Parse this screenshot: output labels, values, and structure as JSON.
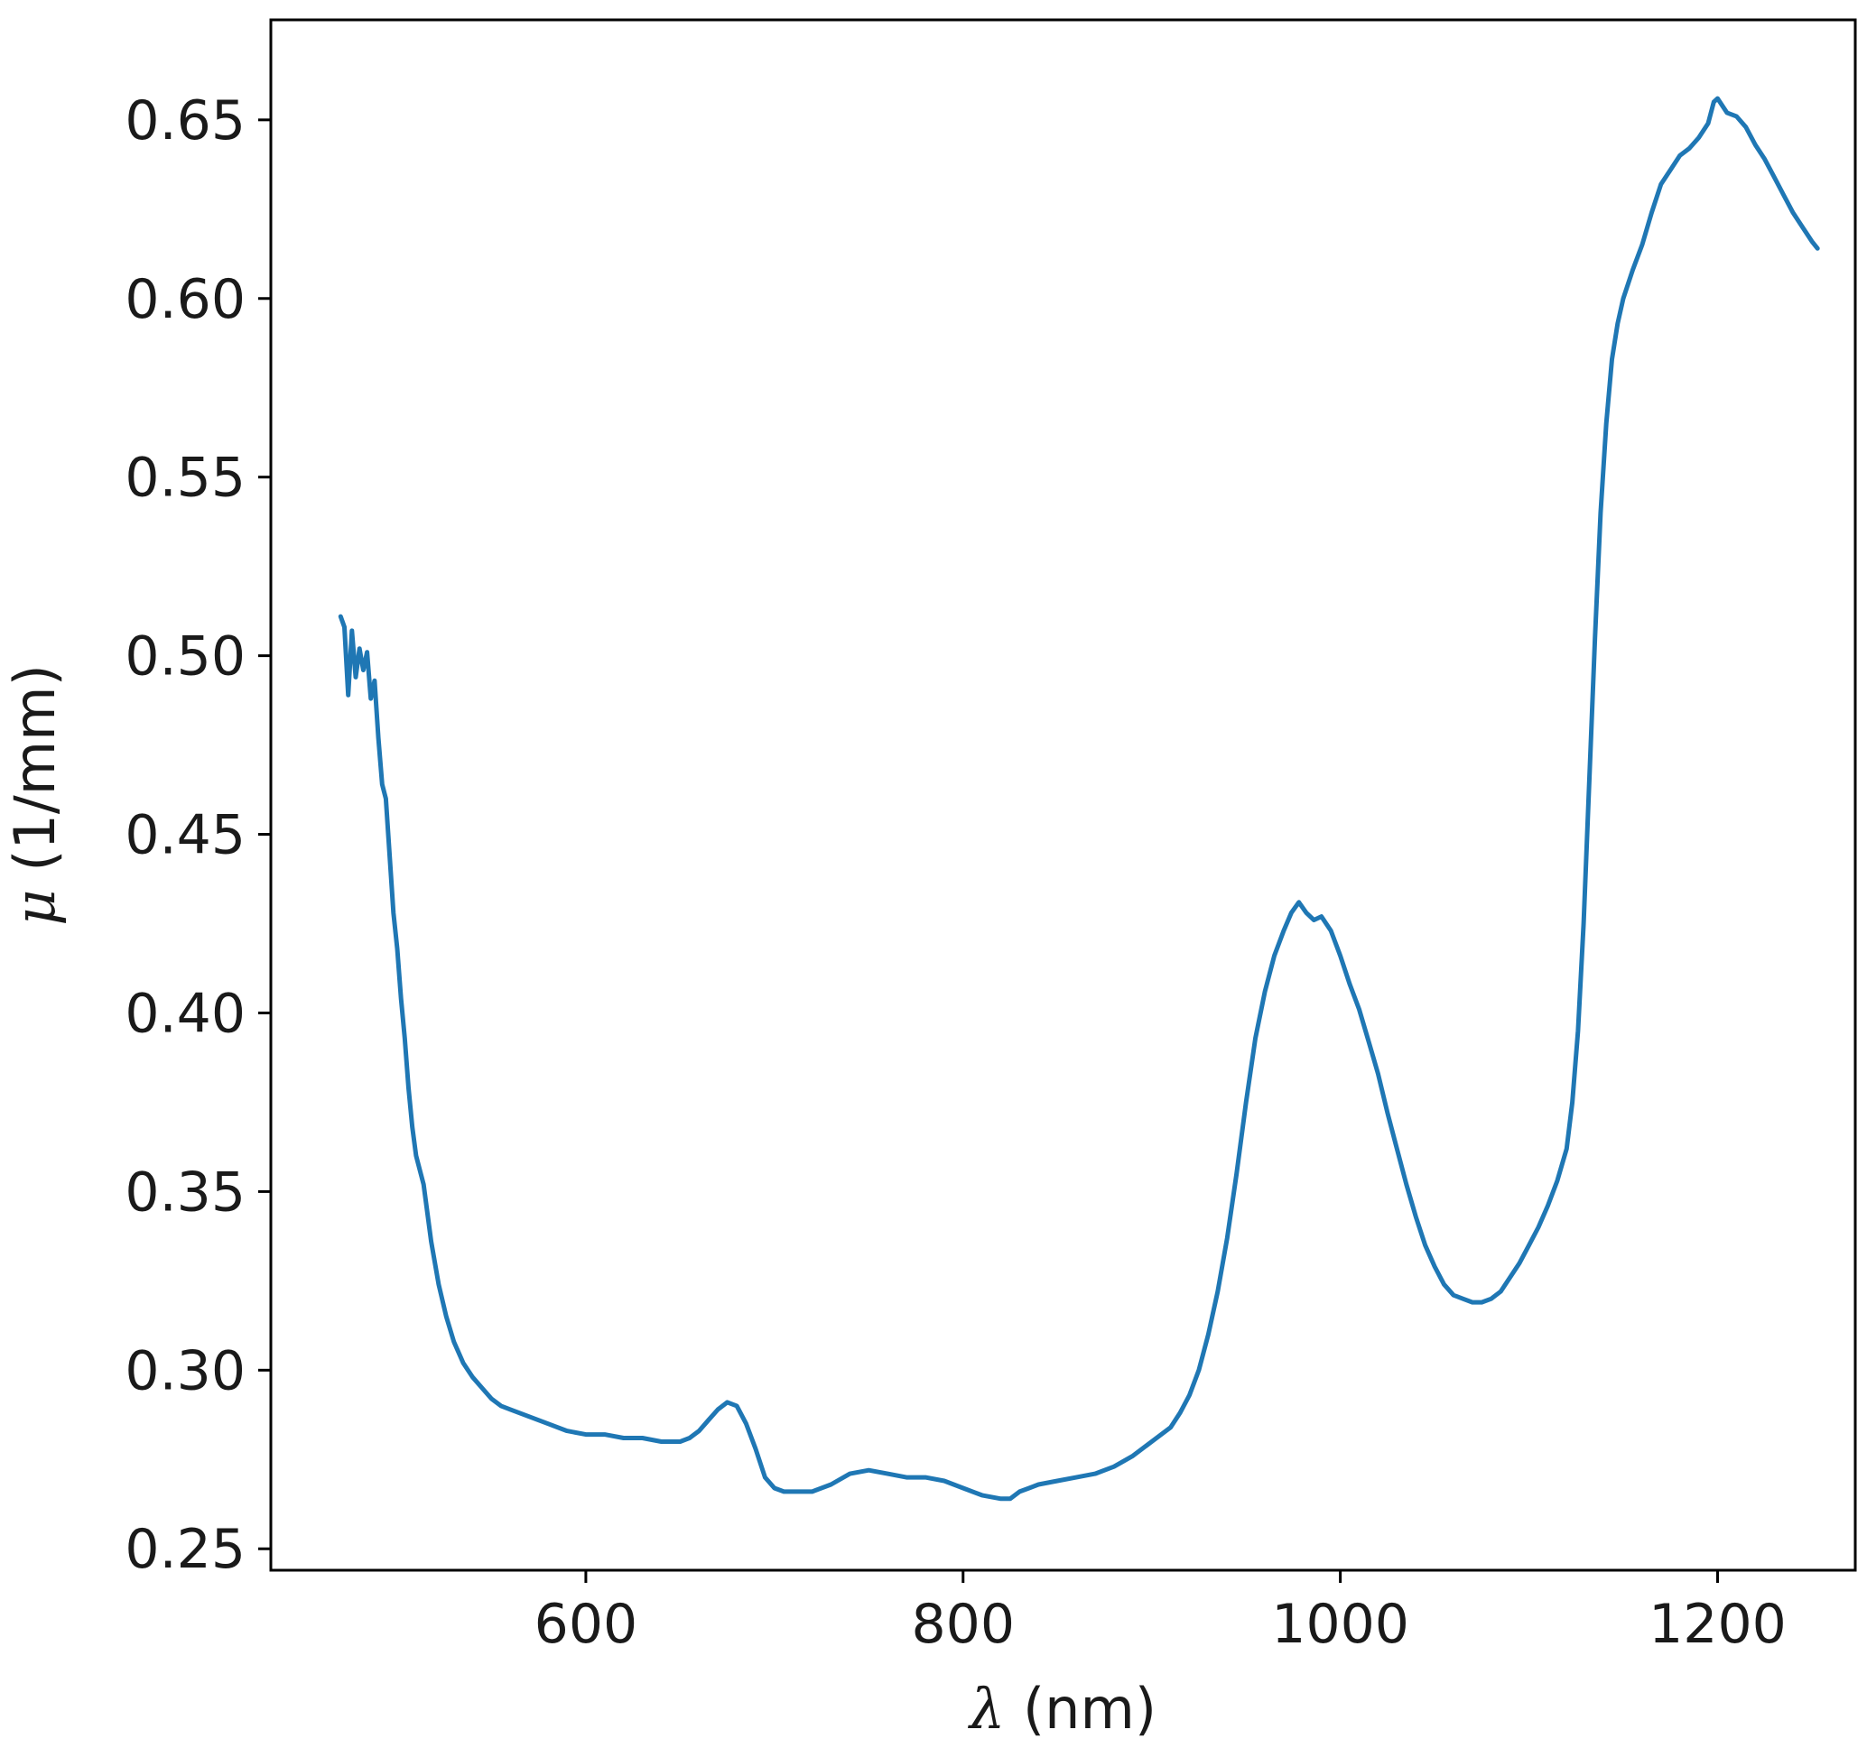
{
  "chart_data": {
    "type": "line",
    "title": "",
    "xlabel": {
      "symbol": "λ",
      "unit": " (nm)"
    },
    "ylabel": {
      "symbol": "μ",
      "unit": " (1/mm)"
    },
    "xlim": [
      433,
      1273
    ],
    "ylim": [
      0.244,
      0.678
    ],
    "xticks": [
      600,
      800,
      1000,
      1200
    ],
    "xtick_labels": [
      "600",
      "800",
      "1000",
      "1200"
    ],
    "yticks": [
      0.25,
      0.3,
      0.35,
      0.4,
      0.45,
      0.5,
      0.55,
      0.6,
      0.65
    ],
    "ytick_labels": [
      "0.25",
      "0.30",
      "0.35",
      "0.40",
      "0.45",
      "0.50",
      "0.55",
      "0.60",
      "0.65"
    ],
    "grid": false,
    "legend": "none",
    "series": [
      {
        "color": "#1f77b4",
        "points": [
          [
            470,
            0.511
          ],
          [
            472,
            0.508
          ],
          [
            474,
            0.489
          ],
          [
            476,
            0.507
          ],
          [
            478,
            0.494
          ],
          [
            480,
            0.502
          ],
          [
            482,
            0.496
          ],
          [
            484,
            0.501
          ],
          [
            486,
            0.488
          ],
          [
            488,
            0.493
          ],
          [
            490,
            0.477
          ],
          [
            492,
            0.464
          ],
          [
            494,
            0.46
          ],
          [
            496,
            0.444
          ],
          [
            498,
            0.428
          ],
          [
            500,
            0.418
          ],
          [
            502,
            0.404
          ],
          [
            504,
            0.393
          ],
          [
            506,
            0.379
          ],
          [
            508,
            0.368
          ],
          [
            510,
            0.36
          ],
          [
            514,
            0.352
          ],
          [
            518,
            0.336
          ],
          [
            522,
            0.324
          ],
          [
            526,
            0.315
          ],
          [
            530,
            0.308
          ],
          [
            535,
            0.302
          ],
          [
            540,
            0.298
          ],
          [
            545,
            0.295
          ],
          [
            550,
            0.292
          ],
          [
            555,
            0.29
          ],
          [
            560,
            0.289
          ],
          [
            570,
            0.287
          ],
          [
            580,
            0.285
          ],
          [
            590,
            0.283
          ],
          [
            600,
            0.282
          ],
          [
            610,
            0.282
          ],
          [
            620,
            0.281
          ],
          [
            630,
            0.281
          ],
          [
            640,
            0.28
          ],
          [
            650,
            0.28
          ],
          [
            655,
            0.281
          ],
          [
            660,
            0.283
          ],
          [
            665,
            0.286
          ],
          [
            670,
            0.289
          ],
          [
            675,
            0.291
          ],
          [
            680,
            0.29
          ],
          [
            685,
            0.285
          ],
          [
            690,
            0.278
          ],
          [
            695,
            0.27
          ],
          [
            700,
            0.267
          ],
          [
            705,
            0.266
          ],
          [
            710,
            0.266
          ],
          [
            720,
            0.266
          ],
          [
            730,
            0.268
          ],
          [
            740,
            0.271
          ],
          [
            750,
            0.272
          ],
          [
            760,
            0.271
          ],
          [
            770,
            0.27
          ],
          [
            780,
            0.27
          ],
          [
            790,
            0.269
          ],
          [
            800,
            0.267
          ],
          [
            810,
            0.265
          ],
          [
            820,
            0.264
          ],
          [
            825,
            0.264
          ],
          [
            830,
            0.266
          ],
          [
            835,
            0.267
          ],
          [
            840,
            0.268
          ],
          [
            850,
            0.269
          ],
          [
            860,
            0.27
          ],
          [
            870,
            0.271
          ],
          [
            880,
            0.273
          ],
          [
            890,
            0.276
          ],
          [
            900,
            0.28
          ],
          [
            910,
            0.284
          ],
          [
            915,
            0.288
          ],
          [
            920,
            0.293
          ],
          [
            925,
            0.3
          ],
          [
            930,
            0.31
          ],
          [
            935,
            0.322
          ],
          [
            940,
            0.337
          ],
          [
            945,
            0.355
          ],
          [
            950,
            0.375
          ],
          [
            955,
            0.393
          ],
          [
            960,
            0.406
          ],
          [
            965,
            0.416
          ],
          [
            970,
            0.423
          ],
          [
            974,
            0.428
          ],
          [
            978,
            0.431
          ],
          [
            982,
            0.428
          ],
          [
            986,
            0.426
          ],
          [
            990,
            0.427
          ],
          [
            995,
            0.423
          ],
          [
            1000,
            0.416
          ],
          [
            1005,
            0.408
          ],
          [
            1010,
            0.401
          ],
          [
            1015,
            0.392
          ],
          [
            1020,
            0.383
          ],
          [
            1025,
            0.372
          ],
          [
            1030,
            0.362
          ],
          [
            1035,
            0.352
          ],
          [
            1040,
            0.343
          ],
          [
            1045,
            0.335
          ],
          [
            1050,
            0.329
          ],
          [
            1055,
            0.324
          ],
          [
            1060,
            0.321
          ],
          [
            1065,
            0.32
          ],
          [
            1070,
            0.319
          ],
          [
            1075,
            0.319
          ],
          [
            1080,
            0.32
          ],
          [
            1085,
            0.322
          ],
          [
            1090,
            0.326
          ],
          [
            1095,
            0.33
          ],
          [
            1100,
            0.335
          ],
          [
            1105,
            0.34
          ],
          [
            1110,
            0.346
          ],
          [
            1115,
            0.353
          ],
          [
            1120,
            0.362
          ],
          [
            1123,
            0.375
          ],
          [
            1126,
            0.395
          ],
          [
            1129,
            0.425
          ],
          [
            1132,
            0.465
          ],
          [
            1135,
            0.505
          ],
          [
            1138,
            0.54
          ],
          [
            1141,
            0.565
          ],
          [
            1144,
            0.583
          ],
          [
            1147,
            0.593
          ],
          [
            1150,
            0.6
          ],
          [
            1155,
            0.608
          ],
          [
            1160,
            0.615
          ],
          [
            1165,
            0.624
          ],
          [
            1170,
            0.632
          ],
          [
            1175,
            0.636
          ],
          [
            1180,
            0.64
          ],
          [
            1185,
            0.642
          ],
          [
            1190,
            0.645
          ],
          [
            1195,
            0.649
          ],
          [
            1198,
            0.655
          ],
          [
            1200,
            0.656
          ],
          [
            1205,
            0.652
          ],
          [
            1210,
            0.651
          ],
          [
            1215,
            0.648
          ],
          [
            1220,
            0.643
          ],
          [
            1225,
            0.639
          ],
          [
            1230,
            0.634
          ],
          [
            1235,
            0.629
          ],
          [
            1240,
            0.624
          ],
          [
            1245,
            0.62
          ],
          [
            1250,
            0.616
          ],
          [
            1253,
            0.614
          ]
        ]
      }
    ]
  }
}
